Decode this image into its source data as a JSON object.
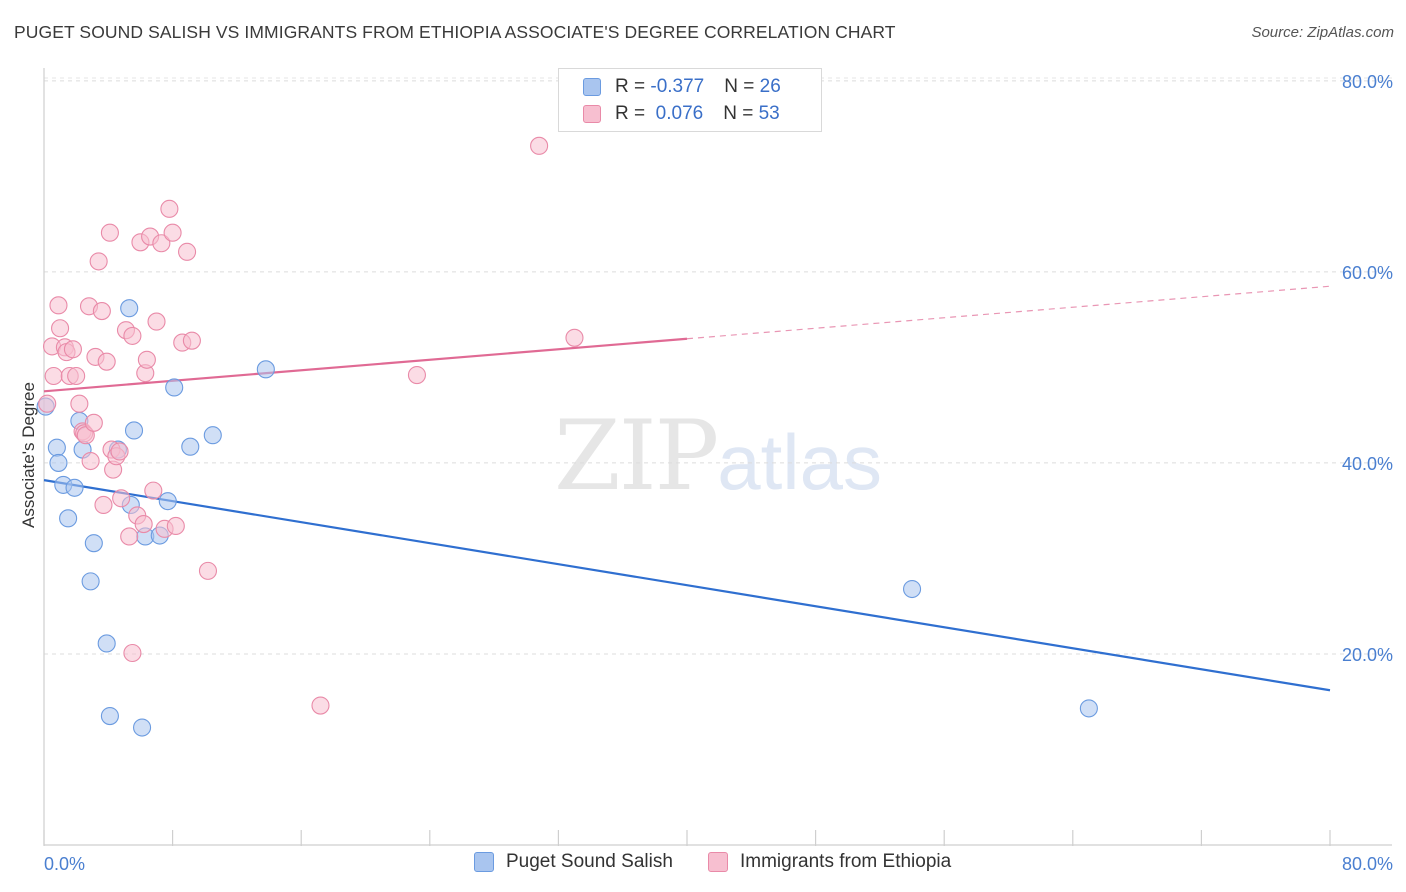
{
  "title": "PUGET SOUND SALISH VS IMMIGRANTS FROM ETHIOPIA ASSOCIATE'S DEGREE CORRELATION CHART",
  "source": "Source: ZipAtlas.com",
  "watermark": {
    "zip": "ZIP",
    "atlas": "atlas"
  },
  "legend": {
    "rows": [
      {
        "r_label": "R = ",
        "r_value": "-0.377",
        "n_label": "N = ",
        "n_value": "26",
        "color": "#a9c5ef",
        "border": "#6b9be0"
      },
      {
        "r_label": "R = ",
        "r_value": " 0.076",
        "n_label": "N = ",
        "n_value": "53",
        "color": "#f7bfd0",
        "border": "#e98aa8"
      }
    ]
  },
  "chart_data": {
    "type": "scatter",
    "title": "PUGET SOUND SALISH VS IMMIGRANTS FROM ETHIOPIA ASSOCIATE'S DEGREE CORRELATION CHART",
    "xlabel": "",
    "ylabel": "Associate's Degree",
    "xlim": [
      0,
      80
    ],
    "ylim": [
      0,
      80
    ],
    "x_tick_labels": [
      {
        "value": 0,
        "label": "0.0%"
      },
      {
        "value": 80,
        "label": "80.0%"
      }
    ],
    "y_tick_labels": [
      {
        "value": 20,
        "label": "20.0%"
      },
      {
        "value": 40,
        "label": "40.0%"
      },
      {
        "value": 60,
        "label": "60.0%"
      },
      {
        "value": 80,
        "label": "80.0%"
      }
    ],
    "grid": true,
    "legend_position": "bottom",
    "series": [
      {
        "name": "Puget Sound Salish",
        "color": "#6b9be0",
        "fill": "#a9c5ef",
        "trend": {
          "x": [
            0,
            80
          ],
          "y": [
            38.2,
            16.2
          ],
          "color": "#2f6fd0"
        },
        "points": [
          [
            0.1,
            45.9
          ],
          [
            0.8,
            41.6
          ],
          [
            0.9,
            40.0
          ],
          [
            1.2,
            37.7
          ],
          [
            1.5,
            34.2
          ],
          [
            1.9,
            37.4
          ],
          [
            2.2,
            44.4
          ],
          [
            2.4,
            41.4
          ],
          [
            2.9,
            27.6
          ],
          [
            3.1,
            31.6
          ],
          [
            3.9,
            21.1
          ],
          [
            4.1,
            13.5
          ],
          [
            4.6,
            41.4
          ],
          [
            5.3,
            56.2
          ],
          [
            5.4,
            35.6
          ],
          [
            5.6,
            43.4
          ],
          [
            6.1,
            12.3
          ],
          [
            6.3,
            32.3
          ],
          [
            7.2,
            32.4
          ],
          [
            7.7,
            36.0
          ],
          [
            8.1,
            47.9
          ],
          [
            9.1,
            41.7
          ],
          [
            10.5,
            42.9
          ],
          [
            13.8,
            49.8
          ],
          [
            54.0,
            26.8
          ],
          [
            65.0,
            14.3
          ]
        ]
      },
      {
        "name": "Immigrants from Ethiopia",
        "color": "#e98aa8",
        "fill": "#f7bfd0",
        "trend": {
          "x": [
            0,
            40
          ],
          "y": [
            47.5,
            53.0
          ],
          "dashed_to": {
            "x": 80,
            "y": 58.5
          },
          "color": "#e06a94"
        },
        "points": [
          [
            0.2,
            46.2
          ],
          [
            0.5,
            52.2
          ],
          [
            0.6,
            49.1
          ],
          [
            0.9,
            56.5
          ],
          [
            1.0,
            54.1
          ],
          [
            1.3,
            52.1
          ],
          [
            1.4,
            51.6
          ],
          [
            1.6,
            49.1
          ],
          [
            1.8,
            51.9
          ],
          [
            2.0,
            49.1
          ],
          [
            2.2,
            46.2
          ],
          [
            2.4,
            43.3
          ],
          [
            2.5,
            43.1
          ],
          [
            2.6,
            42.9
          ],
          [
            2.8,
            56.4
          ],
          [
            2.9,
            40.2
          ],
          [
            3.1,
            44.2
          ],
          [
            3.2,
            51.1
          ],
          [
            3.4,
            61.1
          ],
          [
            3.6,
            55.9
          ],
          [
            3.7,
            35.6
          ],
          [
            3.9,
            50.6
          ],
          [
            4.1,
            64.1
          ],
          [
            4.2,
            41.4
          ],
          [
            4.3,
            39.3
          ],
          [
            4.5,
            40.7
          ],
          [
            4.7,
            41.2
          ],
          [
            4.8,
            36.3
          ],
          [
            5.1,
            53.9
          ],
          [
            5.3,
            32.3
          ],
          [
            5.5,
            53.3
          ],
          [
            5.8,
            34.5
          ],
          [
            6.0,
            63.1
          ],
          [
            6.3,
            49.4
          ],
          [
            6.4,
            50.8
          ],
          [
            6.6,
            63.7
          ],
          [
            6.8,
            37.1
          ],
          [
            7.0,
            54.8
          ],
          [
            7.3,
            63.0
          ],
          [
            7.5,
            33.1
          ],
          [
            7.8,
            66.6
          ],
          [
            8.0,
            64.1
          ],
          [
            8.2,
            33.4
          ],
          [
            8.6,
            52.6
          ],
          [
            8.9,
            62.1
          ],
          [
            9.2,
            52.8
          ],
          [
            10.2,
            28.7
          ],
          [
            5.5,
            20.1
          ],
          [
            17.2,
            14.6
          ],
          [
            23.2,
            49.2
          ],
          [
            30.8,
            73.2
          ],
          [
            33.0,
            53.1
          ],
          [
            6.2,
            33.6
          ]
        ]
      }
    ]
  }
}
